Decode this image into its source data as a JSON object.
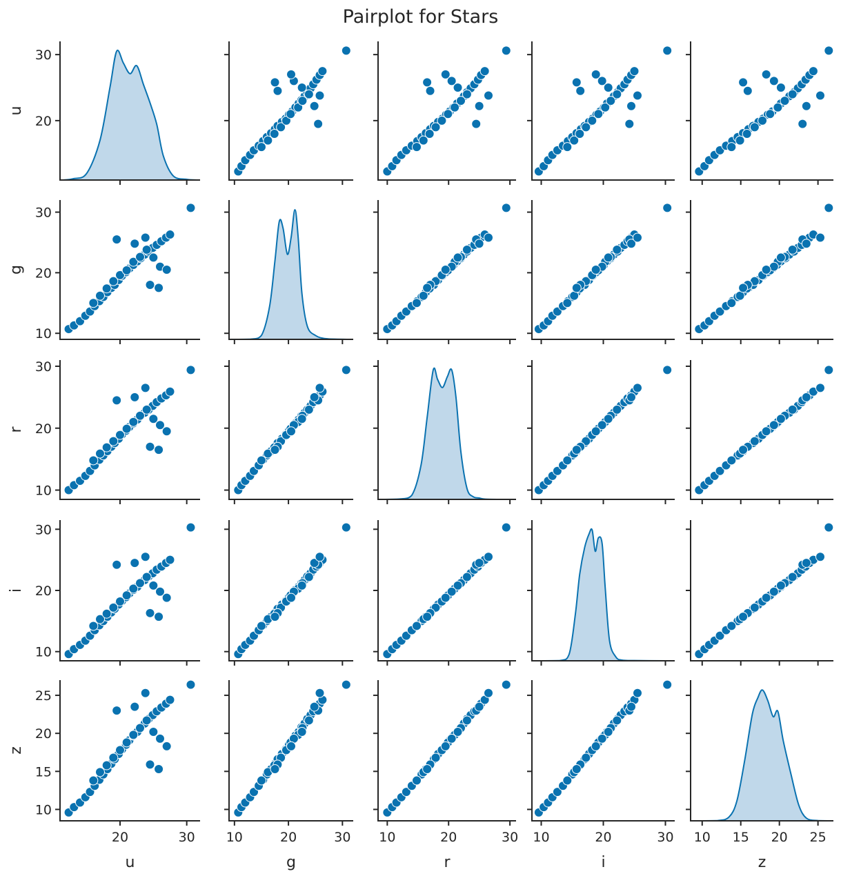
{
  "title": "Pairplot for Stars",
  "colors": {
    "points": "#0a72b0",
    "point_edge": "#ffffff",
    "kde_line": "#0a72b0",
    "kde_fill": "#c0d8ea",
    "axes": "#262626"
  },
  "chart_data": {
    "type": "scatter",
    "subtype": "pairplot",
    "variables": [
      "u",
      "g",
      "r",
      "i",
      "z"
    ],
    "ranges": {
      "u": [
        11.0,
        32.0
      ],
      "g": [
        9.0,
        32.0
      ],
      "r": [
        8.5,
        31.0
      ],
      "i": [
        8.5,
        31.5
      ],
      "z": [
        8.5,
        27.0
      ]
    },
    "ticks": {
      "u": [
        20,
        30
      ],
      "g": [
        10,
        20,
        30
      ],
      "r": [
        10,
        20,
        30
      ],
      "i": [
        10,
        20,
        30
      ],
      "z": [
        10,
        15,
        20,
        25
      ]
    },
    "diagonal_kde": {
      "u": {
        "x": [
          11.5,
          13,
          15,
          17,
          18.5,
          19.5,
          20.5,
          21.5,
          22.5,
          23.5,
          24.5,
          25.5,
          26.5,
          28,
          30,
          31.5
        ],
        "density": [
          0.0,
          0.01,
          0.05,
          0.3,
          0.7,
          0.97,
          0.88,
          0.8,
          0.86,
          0.72,
          0.58,
          0.42,
          0.18,
          0.03,
          0.005,
          0.0
        ]
      },
      "g": {
        "x": [
          9.5,
          13,
          15,
          16.5,
          17.5,
          18.3,
          19,
          19.8,
          20.5,
          21.2,
          21.8,
          22.5,
          23.5,
          25,
          27,
          31
        ],
        "density": [
          0.0,
          0.002,
          0.03,
          0.25,
          0.6,
          0.9,
          0.85,
          0.65,
          0.78,
          0.99,
          0.78,
          0.35,
          0.1,
          0.03,
          0.005,
          0.0
        ]
      },
      "r": {
        "x": [
          9,
          12,
          14,
          15.5,
          16.5,
          17.5,
          18.2,
          19,
          19.8,
          20.5,
          21.2,
          22,
          23,
          24,
          25,
          26,
          29
        ],
        "density": [
          0.0,
          0.003,
          0.03,
          0.25,
          0.6,
          0.95,
          0.88,
          0.82,
          0.9,
          0.95,
          0.75,
          0.35,
          0.08,
          0.02,
          0.01,
          0.002,
          0.0
        ]
      },
      "i": {
        "x": [
          9,
          13,
          14.5,
          15.5,
          16.2,
          17,
          17.7,
          18.2,
          18.7,
          19.2,
          19.8,
          20.3,
          21,
          22,
          23,
          25,
          30
        ],
        "density": [
          0.0,
          0.002,
          0.05,
          0.35,
          0.65,
          0.85,
          0.95,
          0.98,
          0.82,
          0.92,
          0.88,
          0.55,
          0.15,
          0.03,
          0.005,
          0.002,
          0.0
        ]
      },
      "z": {
        "x": [
          9,
          12,
          13.5,
          14.5,
          15.5,
          16.5,
          17.2,
          17.8,
          18.5,
          19.2,
          19.8,
          20.5,
          21.5,
          22.5,
          23.5,
          25,
          27
        ],
        "density": [
          0.0,
          0.002,
          0.03,
          0.15,
          0.45,
          0.8,
          0.92,
          0.98,
          0.9,
          0.78,
          0.82,
          0.6,
          0.35,
          0.12,
          0.02,
          0.002,
          0.0
        ]
      }
    },
    "series": [
      {
        "points": {
          "u": [
            12.3,
            13.1,
            14.0,
            14.8,
            15.5,
            16.2,
            16.9,
            17.5,
            18.1,
            18.7,
            19.2,
            19.8,
            20.3,
            20.9,
            21.4,
            22.0,
            22.6,
            23.1,
            23.7,
            24.3,
            24.9,
            25.5,
            26.2,
            26.9,
            27.5,
            16.0,
            17.0,
            18.0,
            19.0,
            20.0,
            21.0,
            22.0,
            23.0,
            24.0,
            25.0,
            26.0,
            27.0,
            24.5,
            25.8,
            19.5,
            22.2,
            23.8,
            30.6
          ],
          "g": [
            10.7,
            11.3,
            12.0,
            12.9,
            13.6,
            14.5,
            15.3,
            16.0,
            16.8,
            17.5,
            18.0,
            18.8,
            19.5,
            20.1,
            20.7,
            21.3,
            21.9,
            22.4,
            23.0,
            23.5,
            24.1,
            24.6,
            25.2,
            25.8,
            26.3,
            15.0,
            16.2,
            17.4,
            18.6,
            19.6,
            20.4,
            21.8,
            22.6,
            23.8,
            22.5,
            21.0,
            20.5,
            18.0,
            17.5,
            25.5,
            24.8,
            25.8,
            30.7
          ],
          "r": [
            10.0,
            10.8,
            11.5,
            12.3,
            13.1,
            14.0,
            14.9,
            15.6,
            16.3,
            17.0,
            17.6,
            18.3,
            19.0,
            19.6,
            20.2,
            20.8,
            21.4,
            22.0,
            22.5,
            23.0,
            23.6,
            24.2,
            24.8,
            25.3,
            25.9,
            14.8,
            15.9,
            16.9,
            17.9,
            18.9,
            19.9,
            21.0,
            22.0,
            23.0,
            21.5,
            20.5,
            19.5,
            17.0,
            16.5,
            24.5,
            25.0,
            26.5,
            29.4
          ],
          "i": [
            9.6,
            10.4,
            11.1,
            11.8,
            12.6,
            13.5,
            14.3,
            15.0,
            15.7,
            16.4,
            17.0,
            17.7,
            18.3,
            18.9,
            19.5,
            20.1,
            20.6,
            21.2,
            21.7,
            22.3,
            22.8,
            23.4,
            23.9,
            24.5,
            25.0,
            14.2,
            15.3,
            16.2,
            17.2,
            18.2,
            19.2,
            20.3,
            21.2,
            22.2,
            20.8,
            19.8,
            18.8,
            16.3,
            15.7,
            24.2,
            24.5,
            25.5,
            30.3
          ],
          "z": [
            9.6,
            10.3,
            10.9,
            11.6,
            12.3,
            13.1,
            13.9,
            14.6,
            15.3,
            16.0,
            16.6,
            17.3,
            17.9,
            18.5,
            19.1,
            19.7,
            20.2,
            20.8,
            21.3,
            21.9,
            22.4,
            22.9,
            23.4,
            23.9,
            24.4,
            13.8,
            14.9,
            15.8,
            16.8,
            17.8,
            18.8,
            19.8,
            20.7,
            21.7,
            20.2,
            19.3,
            18.3,
            15.9,
            15.3,
            23.0,
            23.5,
            25.3,
            26.4
          ]
        }
      }
    ]
  }
}
